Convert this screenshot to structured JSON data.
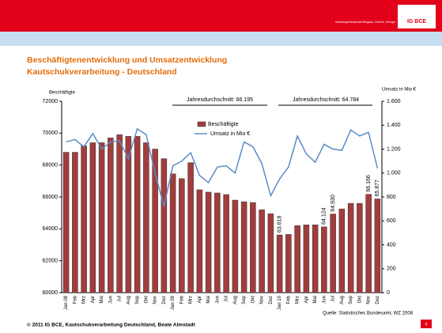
{
  "header": {
    "logo": "IG BCE",
    "logo_text": "Industriegewerkschaft Bergbau, Chemie, Energie"
  },
  "chart_data": {
    "type": "bar_line",
    "title": "Beschäftigtenentwicklung und Umsatzentwicklung",
    "subtitle": "Kautschukverarbeitung - Deutschland",
    "y_label": "Beschäftigte",
    "y2_label": "Umsatz in Mio €",
    "annotations": [
      "Jahresdurchschnitt: 66.195",
      "Jahresdurchschnitt: 64.784"
    ],
    "source": "Quelle: Statistisches Bundesamt, WZ 2008",
    "categories": [
      "Jan 08",
      "Feb",
      "Mrz",
      "Apr",
      "Mai",
      "Jun",
      "Jul",
      "Aug",
      "Sep",
      "Okt",
      "Nov",
      "Dez",
      "Jan 09",
      "Feb",
      "Mrz",
      "Apr",
      "Mai",
      "Jun",
      "Jul",
      "Aug",
      "Sep",
      "Okt",
      "Nov",
      "Dez",
      "Jan 10",
      "Feb",
      "Mrz",
      "Apr",
      "Mai",
      "Jun",
      "Jul",
      "Aug",
      "Sep",
      "Okt",
      "Nov",
      "Dez"
    ],
    "series": [
      {
        "name": "Beschäftigte",
        "type": "bar",
        "color": "#a33c3c",
        "values": [
          68800,
          68800,
          69200,
          69400,
          69400,
          69700,
          69900,
          69800,
          69800,
          69400,
          69000,
          68400,
          67450,
          67150,
          68150,
          66450,
          66300,
          66250,
          66150,
          65800,
          65700,
          65650,
          65200,
          64950,
          63618,
          63650,
          64200,
          64250,
          64250,
          64124,
          64930,
          65250,
          65600,
          65600,
          66166,
          65877
        ],
        "value_labels": [
          null,
          null,
          null,
          null,
          null,
          null,
          null,
          null,
          null,
          null,
          null,
          null,
          null,
          null,
          null,
          null,
          null,
          null,
          null,
          null,
          null,
          null,
          null,
          null,
          "63.618",
          null,
          null,
          null,
          null,
          "64.124",
          "64.930",
          null,
          null,
          null,
          "66.166",
          "65.877"
        ]
      },
      {
        "name": "Umsatz in Mio  €",
        "type": "line",
        "axis": "y2",
        "color": "#5b8cc8",
        "values": [
          1260,
          1280,
          1220,
          1330,
          1200,
          1260,
          1270,
          1120,
          1370,
          1320,
          1000,
          720,
          1060,
          1100,
          1170,
          980,
          920,
          1050,
          1060,
          1000,
          1260,
          1220,
          1080,
          810,
          950,
          1050,
          1310,
          1160,
          1090,
          1240,
          1200,
          1190,
          1360,
          1310,
          1340,
          1040
        ]
      }
    ],
    "ylim": [
      60000,
      72000
    ],
    "yticks": [
      60000,
      62000,
      64000,
      66000,
      68000,
      70000,
      72000
    ],
    "y2lim": [
      0,
      1600
    ],
    "y2ticks": [
      0,
      200,
      400,
      600,
      800,
      {
        "value": 1000,
        "label": "1.000"
      },
      {
        "value": 1200,
        "label": "1.200"
      },
      {
        "value": 1400,
        "label": "1.400"
      },
      {
        "value": 1600,
        "label": "1.600"
      }
    ]
  },
  "footer": {
    "text": "© 2011 IG BCE, Kautschukverarbeitung Deutschland, Beate Almstadt",
    "page": "6"
  }
}
